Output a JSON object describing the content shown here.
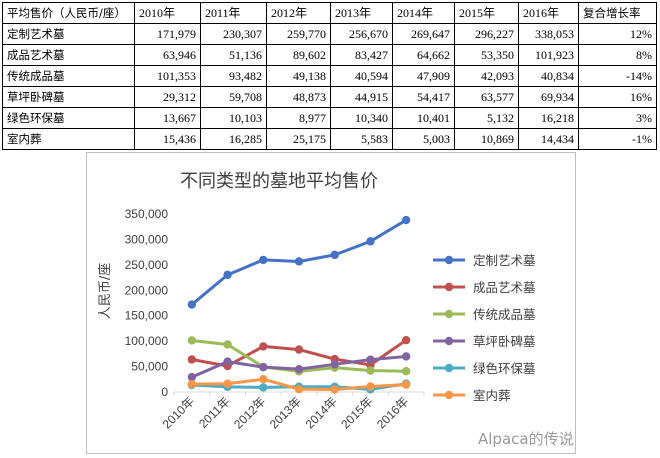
{
  "table": {
    "header_label": "平均售价（人民币/座）",
    "years": [
      "2010年",
      "2011年",
      "2012年",
      "2013年",
      "2014年",
      "2015年",
      "2016年"
    ],
    "cagr_label": "复合增长率",
    "rows": [
      {
        "name": "定制艺术墓",
        "values": [
          "171,979",
          "230,307",
          "259,770",
          "256,670",
          "269,647",
          "296,227",
          "338,053"
        ],
        "cagr": "12%"
      },
      {
        "name": "成品艺术墓",
        "values": [
          "63,946",
          "51,136",
          "89,602",
          "83,427",
          "64,662",
          "53,350",
          "101,923"
        ],
        "cagr": "8%"
      },
      {
        "name": "传统成品墓",
        "values": [
          "101,353",
          "93,482",
          "49,138",
          "40,594",
          "47,909",
          "42,093",
          "40,834"
        ],
        "cagr": "-14%"
      },
      {
        "name": "草坪卧碑墓",
        "values": [
          "29,312",
          "59,708",
          "48,873",
          "44,915",
          "54,417",
          "63,577",
          "69,934"
        ],
        "cagr": "16%"
      },
      {
        "name": "绿色环保墓",
        "values": [
          "13,667",
          "10,103",
          "8,977",
          "10,340",
          "10,401",
          "5,132",
          "16,218"
        ],
        "cagr": "3%"
      },
      {
        "name": "室内葬",
        "values": [
          "15,436",
          "16,285",
          "25,175",
          "5,583",
          "5,003",
          "10,869",
          "14,434"
        ],
        "cagr": "-1%"
      }
    ]
  },
  "chart_data": {
    "type": "line",
    "title": "不同类型的墓地平均售价",
    "ylabel": "人民币/座",
    "xlabel": "",
    "categories": [
      "2010年",
      "2011年",
      "2012年",
      "2013年",
      "2014年",
      "2015年",
      "2016年"
    ],
    "ylim": [
      0,
      350000
    ],
    "yticks": [
      0,
      50000,
      100000,
      150000,
      200000,
      250000,
      300000,
      350000
    ],
    "ytick_labels": [
      "0",
      "50,000",
      "100,000",
      "150,000",
      "200,000",
      "250,000",
      "300,000",
      "350,000"
    ],
    "grid": false,
    "legend_position": "right",
    "series": [
      {
        "name": "定制艺术墓",
        "color": "#4472c4",
        "values": [
          171979,
          230307,
          259770,
          256670,
          269647,
          296227,
          338053
        ]
      },
      {
        "name": "成品艺术墓",
        "color": "#c0504d",
        "values": [
          63946,
          51136,
          89602,
          83427,
          64662,
          53350,
          101923
        ]
      },
      {
        "name": "传统成品墓",
        "color": "#9bbb59",
        "values": [
          101353,
          93482,
          49138,
          40594,
          47909,
          42093,
          40834
        ]
      },
      {
        "name": "草坪卧碑墓",
        "color": "#8064a2",
        "values": [
          29312,
          59708,
          48873,
          44915,
          54417,
          63577,
          69934
        ]
      },
      {
        "name": "绿色环保墓",
        "color": "#4bacc6",
        "values": [
          13667,
          10103,
          8977,
          10340,
          10401,
          5132,
          16218
        ]
      },
      {
        "name": "室内葬",
        "color": "#f79646",
        "values": [
          15436,
          16285,
          25175,
          5583,
          5003,
          10869,
          14434
        ]
      }
    ]
  },
  "watermark": "Alpaca的传说"
}
